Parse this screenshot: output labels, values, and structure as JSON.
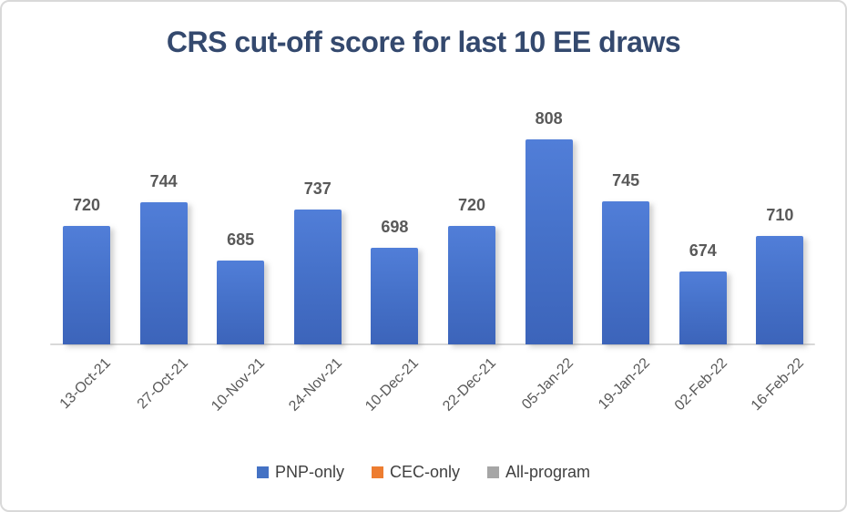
{
  "chart_data": {
    "type": "bar",
    "title": "CRS cut-off score for last 10 EE draws",
    "categories": [
      "13-Oct-21",
      "27-Oct-21",
      "10-Nov-21",
      "24-Nov-21",
      "10-Dec-21",
      "22-Dec-21",
      "05-Jan-22",
      "19-Jan-22",
      "02-Feb-22",
      "16-Feb-22"
    ],
    "series": [
      {
        "name": "PNP-only",
        "color": "#4472C4",
        "values": [
          720,
          744,
          685,
          737,
          698,
          720,
          808,
          745,
          674,
          710
        ]
      },
      {
        "name": "CEC-only",
        "color": "#ED7D31",
        "values": []
      },
      {
        "name": "All-program",
        "color": "#A6A6A6",
        "values": []
      }
    ],
    "xlabel": "",
    "ylabel": "",
    "ylim": [
      600,
      850
    ],
    "grid": false,
    "y_axis_visible": false,
    "data_labels": true,
    "legend_position": "bottom"
  },
  "legend": {
    "items": [
      {
        "label": "PNP-only",
        "color": "#4472C4"
      },
      {
        "label": "CEC-only",
        "color": "#ED7D31"
      },
      {
        "label": "All-program",
        "color": "#A6A6A6"
      }
    ]
  },
  "colors": {
    "title_text": "#34496E",
    "data_label_text": "#595959",
    "axis_label_text": "#595959",
    "legend_text": "#3F3F3F",
    "axis_line": "#D9D9D9",
    "frame_border": "#D9D9D9",
    "background": "#FFFFFF"
  }
}
